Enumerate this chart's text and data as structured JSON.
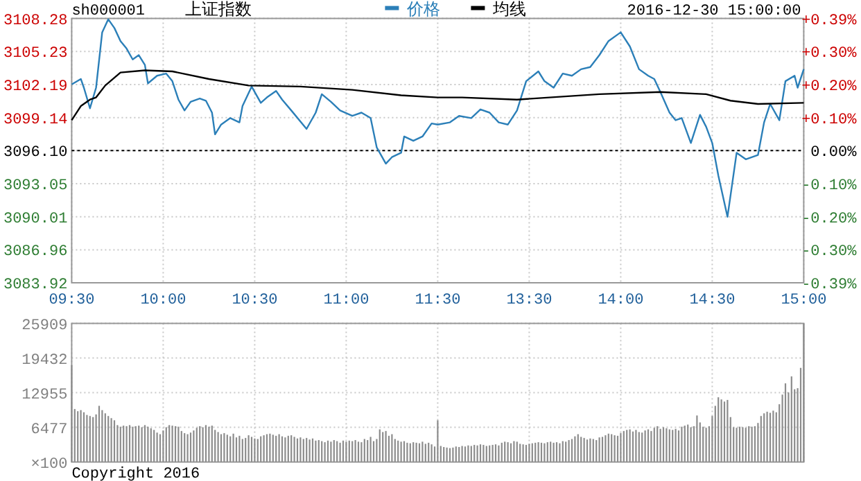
{
  "chart_data": [
    {
      "type": "line",
      "title": "sh000001",
      "subtitle": "上证指数",
      "annotations": [
        "2016-12-30 15:00:00"
      ],
      "categories": [
        "09:30",
        null,
        null,
        null,
        null,
        null,
        null,
        null,
        null,
        null,
        null,
        null,
        null,
        null,
        null,
        null,
        null,
        null,
        null,
        null,
        null,
        null,
        null,
        null,
        null,
        null,
        null,
        null,
        null,
        null,
        "10:00",
        null,
        null,
        null,
        null,
        null,
        null,
        null,
        null,
        null,
        null,
        null,
        null,
        null,
        null,
        null,
        null,
        null,
        null,
        null,
        null,
        null,
        null,
        null,
        null,
        null,
        null,
        null,
        null,
        null,
        "10:30",
        null,
        null,
        null,
        null,
        null,
        null,
        null,
        null,
        null,
        null,
        null,
        null,
        null,
        null,
        null,
        null,
        null,
        null,
        null,
        null,
        null,
        null,
        null,
        null,
        null,
        null,
        null,
        null,
        null,
        "11:00",
        null,
        null,
        null,
        null,
        null,
        null,
        null,
        null,
        null,
        null,
        null,
        null,
        null,
        null,
        null,
        null,
        null,
        null,
        null,
        null,
        null,
        null,
        null,
        null,
        null,
        null,
        null,
        null,
        null,
        "11:30",
        null,
        null,
        null,
        null,
        null,
        null,
        null,
        null,
        null,
        null,
        null,
        null,
        null,
        null,
        null,
        null,
        null,
        null,
        null,
        null,
        null,
        null,
        null,
        null,
        null,
        null,
        null,
        null,
        null,
        "13:30",
        null,
        null,
        null,
        null,
        null,
        null,
        null,
        null,
        null,
        null,
        null,
        null,
        null,
        null,
        null,
        null,
        null,
        null,
        null,
        null,
        null,
        null,
        null,
        null,
        null,
        null,
        null,
        null,
        null,
        "14:00",
        null,
        null,
        null,
        null,
        null,
        null,
        null,
        null,
        null,
        null,
        null,
        null,
        null,
        null,
        null,
        null,
        null,
        null,
        null,
        null,
        null,
        null,
        null,
        null,
        null,
        null,
        null,
        null,
        null,
        "14:30",
        null,
        null,
        null,
        null,
        null,
        null,
        null,
        null,
        null,
        null,
        null,
        null,
        null,
        null,
        null,
        null,
        null,
        null,
        null,
        null,
        null,
        null,
        null,
        null,
        null,
        null,
        null,
        null,
        null,
        "15:00"
      ],
      "series": [
        {
          "name": "价格",
          "color": "#2b7fb8",
          "values": [
            3102.2,
            null,
            null,
            3102.7,
            3101.9,
            null,
            3100.0,
            null,
            3101.9,
            null,
            3107.0,
            null,
            3108.2,
            null,
            3107.4,
            null,
            3106.2,
            null,
            3105.5,
            null,
            3104.5,
            null,
            3104.9,
            null,
            3104.0,
            3102.3,
            null,
            null,
            3103.0,
            null,
            null,
            3103.2,
            null,
            3102.5,
            null,
            3100.8,
            null,
            3099.8,
            null,
            3100.6,
            null,
            null,
            3100.9,
            null,
            3100.7,
            null,
            3099.6,
            3097.6,
            null,
            3098.5,
            null,
            null,
            3099.1,
            null,
            null,
            3098.7,
            3100.2,
            null,
            null,
            3102.0,
            null,
            null,
            3100.5,
            null,
            3101.0,
            null,
            null,
            3101.6,
            null,
            3100.8,
            null,
            null,
            3099.8,
            null,
            null,
            null,
            null,
            3098.1,
            null,
            null,
            3099.6,
            null,
            3101.3,
            null,
            null,
            3100.6,
            null,
            null,
            3099.8,
            null,
            null,
            null,
            3099.3,
            null,
            null,
            3099.6,
            null,
            null,
            3099.1,
            null,
            3096.4,
            null,
            null,
            3094.9,
            null,
            3095.5,
            null,
            null,
            3095.9,
            3097.4,
            null,
            null,
            3097.0,
            null,
            null,
            3097.4,
            null,
            null,
            3098.6,
            null,
            3098.5,
            null,
            null,
            null,
            3098.7,
            null,
            null,
            3099.3,
            null,
            null,
            null,
            3099.1,
            null,
            null,
            3099.9,
            null,
            null,
            3099.6,
            null,
            null,
            3098.7,
            null,
            null,
            3098.5,
            null,
            null,
            3099.8,
            null,
            null,
            3102.5,
            null,
            null,
            null,
            3103.4,
            null,
            3102.5,
            null,
            null,
            3101.9,
            null,
            null,
            3103.2,
            null,
            null,
            3103.0,
            null,
            null,
            3103.6,
            null,
            null,
            3103.8,
            null,
            null,
            3104.9,
            null,
            null,
            3106.2,
            null,
            null,
            null,
            3107.0,
            null,
            null,
            3105.7,
            null,
            null,
            3103.6,
            null,
            null,
            3103.0,
            null,
            3102.7,
            null,
            3101.5,
            null,
            null,
            3099.6,
            null,
            3098.9,
            null,
            3099.1,
            null,
            null,
            3096.8,
            null,
            null,
            3099.4,
            null,
            3098.3,
            null,
            3096.8,
            null,
            3093.8,
            null,
            null,
            3090.0,
            null,
            null,
            3095.9,
            null,
            null,
            3095.3,
            null,
            null,
            null,
            3095.7,
            null,
            3098.7,
            null,
            3100.4,
            null,
            null,
            3098.9,
            null,
            3102.5,
            null,
            null,
            3103.0,
            3101.9,
            null,
            3103.6
          ]
        },
        {
          "name": "均线",
          "color": "#000000",
          "values": [
            3098.9,
            null,
            null,
            3100.2,
            null,
            null,
            3100.8,
            null,
            3101.0,
            null,
            null,
            3102.1,
            null,
            null,
            null,
            null,
            3103.3,
            null,
            null,
            null,
            null,
            null,
            null,
            null,
            3103.5,
            null,
            null,
            null,
            null,
            null,
            null,
            null,
            null,
            3103.4,
            null,
            null,
            null,
            null,
            null,
            null,
            null,
            null,
            null,
            null,
            null,
            3102.7,
            null,
            null,
            null,
            null,
            null,
            null,
            null,
            null,
            null,
            null,
            null,
            null,
            3102.1,
            null,
            null,
            null,
            null,
            null,
            null,
            null,
            null,
            null,
            null,
            null,
            null,
            null,
            null,
            null,
            null,
            3102.0,
            null,
            null,
            null,
            null,
            null,
            null,
            null,
            null,
            null,
            null,
            null,
            null,
            null,
            null,
            null,
            null,
            3101.7,
            null,
            null,
            null,
            null,
            null,
            null,
            null,
            null,
            null,
            null,
            null,
            null,
            null,
            null,
            null,
            3101.2,
            null,
            null,
            null,
            null,
            null,
            null,
            null,
            null,
            null,
            null,
            null,
            3101.0,
            null,
            null,
            null,
            null,
            null,
            null,
            null,
            3101.0,
            null,
            null,
            null,
            null,
            null,
            null,
            null,
            null,
            null,
            null,
            null,
            null,
            null,
            null,
            null,
            null,
            null,
            3100.8,
            null,
            null,
            null,
            null,
            null,
            null,
            null,
            null,
            null,
            null,
            null,
            null,
            null,
            null,
            null,
            null,
            null,
            null,
            null,
            null,
            null,
            null,
            null,
            null,
            null,
            null,
            3101.3,
            null,
            null,
            null,
            null,
            null,
            null,
            null,
            null,
            null,
            null,
            null,
            null,
            null,
            null,
            null,
            null,
            null,
            null,
            null,
            3101.5,
            null,
            null,
            null,
            null,
            null,
            null,
            null,
            null,
            null,
            null,
            null,
            null,
            null,
            null,
            3101.3,
            null,
            null,
            null,
            null,
            null,
            null,
            null,
            3100.7,
            null,
            null,
            null,
            null,
            null,
            null,
            null,
            null,
            3100.4,
            null,
            null,
            null,
            null,
            null,
            null,
            null,
            null,
            null,
            null,
            null,
            null,
            null,
            null,
            3100.5
          ]
        }
      ],
      "ylim": [
        3083.92,
        3108.28
      ],
      "yticks": [
        3083.92,
        3086.96,
        3090.01,
        3093.05,
        {
          "value": 3096.1,
          "label": "3096.10"
        },
        3099.14,
        3102.19,
        3105.23,
        3108.28
      ],
      "y2lim": [
        -0.393,
        0.393
      ],
      "y2ticks": [
        {
          "value": -0.393,
          "label": "-0.39%"
        },
        {
          "value": -0.295,
          "label": "-0.30%"
        },
        {
          "value": -0.197,
          "label": "-0.20%"
        },
        {
          "value": -0.098,
          "label": "-0.10%"
        },
        {
          "value": 0,
          "label": "0.00%"
        },
        {
          "value": 0.098,
          "label": "+0.10%"
        },
        {
          "value": 0.197,
          "label": "+0.20%"
        },
        {
          "value": 0.295,
          "label": "+0.30%"
        },
        {
          "value": 0.393,
          "label": "+0.39%"
        }
      ],
      "ref_lines": [
        {
          "axis": "y",
          "value": 3096.1,
          "color": "#000000",
          "line_style": "dotted"
        }
      ],
      "grid": true,
      "legend": "top"
    },
    {
      "type": "bar",
      "ylabel": "×100",
      "annotations": [
        "Copyright 2016"
      ],
      "categories": [
        null,
        null,
        null,
        null,
        null,
        null,
        null,
        null,
        null,
        null,
        null,
        null,
        null,
        null,
        null,
        null,
        null,
        null,
        null,
        null,
        null,
        null,
        null,
        null,
        null,
        null,
        null,
        null,
        null,
        null,
        null,
        null,
        null,
        null,
        null,
        null,
        null,
        null,
        null,
        null,
        null,
        null,
        null,
        null,
        null,
        null,
        null,
        null,
        null,
        null,
        null,
        null,
        null,
        null,
        null,
        null,
        null,
        null,
        null,
        null,
        null,
        null,
        null,
        null,
        null,
        null,
        null,
        null,
        null,
        null,
        null,
        null,
        null,
        null,
        null,
        null,
        null,
        null,
        null,
        null,
        null,
        null,
        null,
        null,
        null,
        null,
        null,
        null,
        null,
        null,
        null,
        null,
        null,
        null,
        null,
        null,
        null,
        null,
        null,
        null,
        null,
        null,
        null,
        null,
        null,
        null,
        null,
        null,
        null,
        null,
        null,
        null,
        null,
        null,
        null,
        null,
        null,
        null,
        null,
        null,
        null,
        null,
        null,
        null,
        null,
        null,
        null,
        null,
        null,
        null,
        null,
        null,
        null,
        null,
        null,
        null,
        null,
        null,
        null,
        null,
        null,
        null,
        null,
        null,
        null,
        null,
        null,
        null,
        null,
        null,
        null,
        null,
        null,
        null,
        null,
        null,
        null,
        null,
        null,
        null,
        null,
        null,
        null,
        null,
        null,
        null,
        null,
        null,
        null,
        null,
        null,
        null,
        null,
        null,
        null,
        null,
        null,
        null,
        null,
        null,
        null,
        null,
        null,
        null,
        null,
        null,
        null,
        null,
        null,
        null,
        null,
        null,
        null,
        null,
        null,
        null,
        null,
        null,
        null,
        null,
        null,
        null,
        null,
        null,
        null,
        null,
        null,
        null,
        null,
        null,
        null,
        null,
        null,
        null,
        null,
        null,
        null,
        null,
        null,
        null,
        null,
        null,
        null,
        null,
        null,
        null,
        null,
        null,
        null,
        null,
        null,
        null,
        null,
        null,
        null,
        null,
        null,
        null,
        null,
        null,
        null
      ],
      "values": [
        18100,
        9900,
        9500,
        9700,
        9300,
        8800,
        8600,
        8400,
        8900,
        10500,
        9700,
        9100,
        8600,
        8200,
        7800,
        6900,
        6600,
        6800,
        6700,
        6900,
        6600,
        6700,
        6800,
        6500,
        6900,
        6600,
        6300,
        6000,
        5500,
        5200,
        5900,
        6500,
        6900,
        6800,
        6700,
        6600,
        5800,
        5400,
        5200,
        5500,
        5900,
        6400,
        6700,
        6500,
        6900,
        6600,
        6800,
        6000,
        5600,
        5200,
        5400,
        5100,
        4800,
        5300,
        4600,
        4900,
        4300,
        4500,
        5000,
        4700,
        4400,
        4300,
        4800,
        5000,
        5200,
        5300,
        5100,
        4900,
        5200,
        4800,
        4600,
        4900,
        5000,
        4700,
        4400,
        4600,
        4300,
        4500,
        4200,
        4400,
        4000,
        4100,
        3900,
        3700,
        4000,
        3800,
        4100,
        3900,
        3600,
        4000,
        3800,
        4000,
        3900,
        4100,
        3800,
        3700,
        4300,
        4100,
        4700,
        3900,
        4300,
        6100,
        5600,
        5800,
        4900,
        5200,
        4300,
        4000,
        3800,
        3900,
        3600,
        3500,
        3700,
        3600,
        3500,
        3800,
        3400,
        3600,
        3300,
        2900,
        7800,
        3000,
        2800,
        2700,
        2600,
        2700,
        2900,
        2800,
        3000,
        2900,
        3100,
        3000,
        3200,
        3100,
        3300,
        3200,
        3000,
        3100,
        3200,
        3300,
        3100,
        3600,
        3800,
        3700,
        3500,
        3900,
        3800,
        3400,
        3300,
        3200,
        3400,
        3500,
        3600,
        3700,
        3600,
        3500,
        3700,
        3800,
        3600,
        3700,
        3500,
        3900,
        3800,
        4100,
        4300,
        4800,
        5200,
        4700,
        4500,
        4200,
        4400,
        4300,
        4100,
        4600,
        4700,
        5000,
        5300,
        5200,
        5000,
        4900,
        5400,
        5800,
        6000,
        6100,
        5700,
        6000,
        5600,
        5500,
        5900,
        6100,
        5800,
        6400,
        6700,
        6200,
        6500,
        6300,
        6100,
        6000,
        6200,
        5900,
        6600,
        6800,
        7000,
        6500,
        6700,
        8700,
        7400,
        6600,
        6400,
        6700,
        8600,
        10500,
        12100,
        11700,
        11300,
        11600,
        8400,
        6500,
        6400,
        6600,
        6500,
        6400,
        6700,
        6600,
        6700,
        7300,
        8600,
        9100,
        9400,
        9200,
        9600,
        9300,
        10800,
        12600,
        14700,
        13000,
        16000,
        13600,
        13800,
        17600,
        25900
      ],
      "color": "#8c8c8c",
      "ylim": [
        0,
        25909
      ],
      "yticks": [
        6477,
        12955,
        19432,
        25909
      ],
      "tick_labels": "y",
      "grid": true
    }
  ]
}
